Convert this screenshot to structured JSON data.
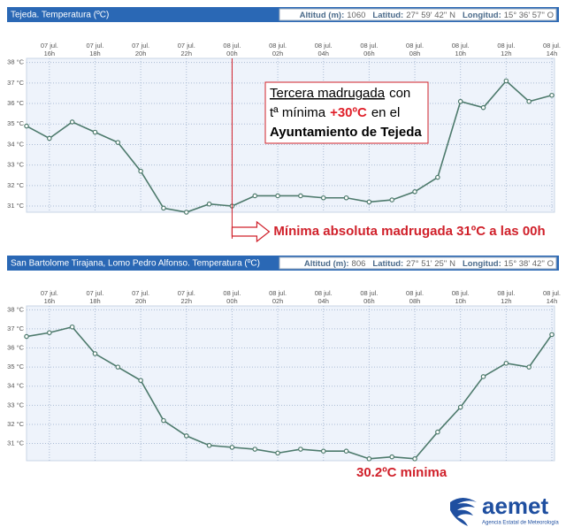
{
  "chart_data": [
    {
      "type": "line",
      "title": "Tejeda. Temperatura (ºC)",
      "info": [
        {
          "label": "Altitud (m):",
          "value": 1060
        },
        {
          "label": "Latitud:",
          "value": "27° 59' 42'' N"
        },
        {
          "label": "Longitud:",
          "value": "15° 36' 57'' O"
        }
      ],
      "categories": [
        null,
        {
          "date": "07 jul.",
          "hour": "16h"
        },
        null,
        {
          "date": "07 jul.",
          "hour": "18h"
        },
        null,
        {
          "date": "07 jul.",
          "hour": "20h"
        },
        null,
        {
          "date": "07 jul.",
          "hour": "22h"
        },
        null,
        {
          "date": "08 jul.",
          "hour": "00h"
        },
        null,
        {
          "date": "08 jul.",
          "hour": "02h"
        },
        null,
        {
          "date": "08 jul.",
          "hour": "04h"
        },
        null,
        {
          "date": "08 jul.",
          "hour": "06h"
        },
        null,
        {
          "date": "08 jul.",
          "hour": "08h"
        },
        null,
        {
          "date": "08 jul.",
          "hour": "10h"
        },
        null,
        {
          "date": "08 jul.",
          "hour": "12h"
        },
        null,
        {
          "date": "08 jul.",
          "hour": "14h"
        }
      ],
      "values": [
        34.9,
        34.3,
        35.1,
        34.6,
        34.1,
        32.7,
        30.9,
        30.7,
        31.1,
        31.0,
        31.5,
        31.5,
        31.5,
        31.4,
        31.4,
        31.2,
        31.3,
        31.7,
        32.4,
        36.1,
        35.8,
        37.1,
        36.1,
        36.4
      ],
      "color": "#4d7a6c",
      "ylim": [
        30.7,
        38.2
      ],
      "yticks": [
        {
          "value": 31,
          "label": "31 °C"
        },
        {
          "value": 32,
          "label": "32 °C"
        },
        {
          "value": 33,
          "label": "33 °C"
        },
        {
          "value": 34,
          "label": "34 °C"
        },
        {
          "value": 35,
          "label": "35 °C"
        },
        {
          "value": 36,
          "label": "36 °C"
        },
        {
          "value": 37,
          "label": "37 °C"
        },
        {
          "value": 38,
          "label": "38 °C"
        }
      ],
      "grid": true,
      "annotations": [
        {
          "kind": "box",
          "lines": [
            [
              {
                "text": "Tercera madrugada",
                "style": "underline"
              },
              {
                "text": "con"
              }
            ],
            [
              {
                "text": "tª mínima"
              },
              {
                "text": "+30ºC",
                "style": "bold-red"
              },
              {
                "text": "en el"
              }
            ],
            [
              {
                "text": "Ayuntamiento de Tejeda",
                "style": "bold"
              }
            ]
          ]
        },
        {
          "kind": "arrow",
          "category_index": 9,
          "text": "Mínima absoluta madrugada 31ºC a las 00h"
        }
      ]
    },
    {
      "type": "line",
      "title": "San Bartolome Tirajana, Lomo Pedro Alfonso. Temperatura (ºC)",
      "info": [
        {
          "label": "Altitud (m):",
          "value": 806
        },
        {
          "label": "Latitud:",
          "value": "27° 51' 25'' N"
        },
        {
          "label": "Longitud:",
          "value": "15° 38' 42'' O"
        }
      ],
      "categories": [
        null,
        {
          "date": "07 jul.",
          "hour": "16h"
        },
        null,
        {
          "date": "07 jul.",
          "hour": "18h"
        },
        null,
        {
          "date": "07 jul.",
          "hour": "20h"
        },
        null,
        {
          "date": "07 jul.",
          "hour": "22h"
        },
        null,
        {
          "date": "08 jul.",
          "hour": "00h"
        },
        null,
        {
          "date": "08 jul.",
          "hour": "02h"
        },
        null,
        {
          "date": "08 jul.",
          "hour": "04h"
        },
        null,
        {
          "date": "08 jul.",
          "hour": "06h"
        },
        null,
        {
          "date": "08 jul.",
          "hour": "08h"
        },
        null,
        {
          "date": "08 jul.",
          "hour": "10h"
        },
        null,
        {
          "date": "08 jul.",
          "hour": "12h"
        },
        null,
        {
          "date": "08 jul.",
          "hour": "14h"
        }
      ],
      "values": [
        36.6,
        36.8,
        37.1,
        35.7,
        35.0,
        34.3,
        32.2,
        31.4,
        30.9,
        30.8,
        30.7,
        30.5,
        30.7,
        30.6,
        30.6,
        30.2,
        30.3,
        30.2,
        31.6,
        32.9,
        34.5,
        35.2,
        35.0,
        36.7
      ],
      "color": "#4d7a6c",
      "ylim": [
        30.1,
        38.2
      ],
      "yticks": [
        {
          "value": 31,
          "label": "31 °C"
        },
        {
          "value": 32,
          "label": "32 °C"
        },
        {
          "value": 33,
          "label": "33 °C"
        },
        {
          "value": 34,
          "label": "34 °C"
        },
        {
          "value": 35,
          "label": "35 °C"
        },
        {
          "value": 36,
          "label": "36 °C"
        },
        {
          "value": 37,
          "label": "37 °C"
        },
        {
          "value": 38,
          "label": "38 °C"
        }
      ],
      "grid": true,
      "annotations": [
        {
          "kind": "text",
          "text": "30.2ºC mínima"
        }
      ]
    }
  ],
  "logo": {
    "name": "aemet",
    "subtitle": "Agencia Estatal de Meteorología"
  }
}
